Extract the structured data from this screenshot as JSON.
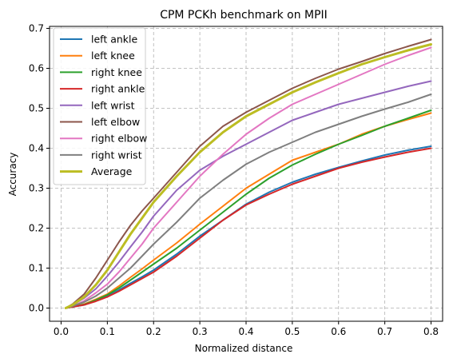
{
  "chart_data": {
    "type": "line",
    "title": "CPM PCKh benchmark on MPII",
    "xlabel": "Normalized distance",
    "ylabel": "Accuracy",
    "xlim": [
      -0.025,
      0.825
    ],
    "ylim": [
      -0.033,
      0.705
    ],
    "xticks": [
      0.0,
      0.1,
      0.2,
      0.3,
      0.4,
      0.5,
      0.6,
      0.7,
      0.8
    ],
    "xtick_labels": [
      "0.0",
      "0.1",
      "0.2",
      "0.3",
      "0.4",
      "0.5",
      "0.6",
      "0.7",
      "0.8"
    ],
    "yticks": [
      0.0,
      0.1,
      0.2,
      0.3,
      0.4,
      0.5,
      0.6,
      0.7
    ],
    "ytick_labels": [
      "0.0",
      "0.1",
      "0.2",
      "0.3",
      "0.4",
      "0.5",
      "0.6",
      "0.7"
    ],
    "grid": true,
    "legend_position": "upper-left",
    "x": [
      0.01,
      0.025,
      0.05,
      0.075,
      0.1,
      0.125,
      0.15,
      0.175,
      0.2,
      0.25,
      0.3,
      0.35,
      0.4,
      0.45,
      0.5,
      0.55,
      0.6,
      0.65,
      0.7,
      0.75,
      0.8
    ],
    "series": [
      {
        "name": "left ankle",
        "color": "#1f77b4",
        "width": 2,
        "values": [
          0.0,
          0.003,
          0.008,
          0.018,
          0.03,
          0.045,
          0.062,
          0.078,
          0.095,
          0.135,
          0.18,
          0.22,
          0.26,
          0.29,
          0.315,
          0.335,
          0.352,
          0.368,
          0.383,
          0.395,
          0.405
        ]
      },
      {
        "name": "left knee",
        "color": "#ff7f0e",
        "width": 2,
        "values": [
          0.0,
          0.003,
          0.01,
          0.022,
          0.035,
          0.055,
          0.077,
          0.098,
          0.12,
          0.163,
          0.21,
          0.255,
          0.3,
          0.335,
          0.37,
          0.39,
          0.41,
          0.435,
          0.455,
          0.472,
          0.488
        ]
      },
      {
        "name": "right knee",
        "color": "#2ca02c",
        "width": 2,
        "values": [
          0.0,
          0.003,
          0.009,
          0.02,
          0.033,
          0.05,
          0.07,
          0.09,
          0.11,
          0.15,
          0.195,
          0.24,
          0.285,
          0.325,
          0.358,
          0.385,
          0.41,
          0.432,
          0.455,
          0.475,
          0.495
        ]
      },
      {
        "name": "right ankle",
        "color": "#d62728",
        "width": 2,
        "values": [
          0.0,
          0.003,
          0.008,
          0.017,
          0.028,
          0.042,
          0.058,
          0.074,
          0.09,
          0.13,
          0.175,
          0.22,
          0.258,
          0.285,
          0.31,
          0.33,
          0.35,
          0.365,
          0.378,
          0.39,
          0.4
        ]
      },
      {
        "name": "left wrist",
        "color": "#9467bd",
        "width": 2,
        "values": [
          0.0,
          0.008,
          0.025,
          0.048,
          0.08,
          0.115,
          0.153,
          0.19,
          0.23,
          0.295,
          0.345,
          0.38,
          0.41,
          0.44,
          0.47,
          0.49,
          0.51,
          0.525,
          0.54,
          0.555,
          0.568
        ]
      },
      {
        "name": "left elbow",
        "color": "#8c564b",
        "width": 2,
        "values": [
          0.0,
          0.01,
          0.035,
          0.075,
          0.12,
          0.165,
          0.207,
          0.243,
          0.275,
          0.34,
          0.405,
          0.455,
          0.49,
          0.52,
          0.55,
          0.575,
          0.598,
          0.617,
          0.637,
          0.655,
          0.672
        ]
      },
      {
        "name": "right elbow",
        "color": "#e377c2",
        "width": 2,
        "values": [
          0.0,
          0.005,
          0.018,
          0.038,
          0.06,
          0.09,
          0.125,
          0.16,
          0.2,
          0.265,
          0.33,
          0.385,
          0.435,
          0.475,
          0.51,
          0.535,
          0.56,
          0.585,
          0.61,
          0.632,
          0.652
        ]
      },
      {
        "name": "right wrist",
        "color": "#7f7f7f",
        "width": 2,
        "values": [
          0.0,
          0.005,
          0.015,
          0.03,
          0.05,
          0.075,
          0.1,
          0.13,
          0.16,
          0.215,
          0.275,
          0.32,
          0.36,
          0.39,
          0.415,
          0.44,
          0.46,
          0.48,
          0.498,
          0.515,
          0.535
        ]
      },
      {
        "name": "Average",
        "color": "#bcbd22",
        "width": 3,
        "values": [
          0.0,
          0.008,
          0.028,
          0.058,
          0.095,
          0.14,
          0.185,
          0.225,
          0.265,
          0.33,
          0.39,
          0.44,
          0.48,
          0.51,
          0.54,
          0.565,
          0.588,
          0.61,
          0.628,
          0.645,
          0.66
        ]
      }
    ]
  }
}
